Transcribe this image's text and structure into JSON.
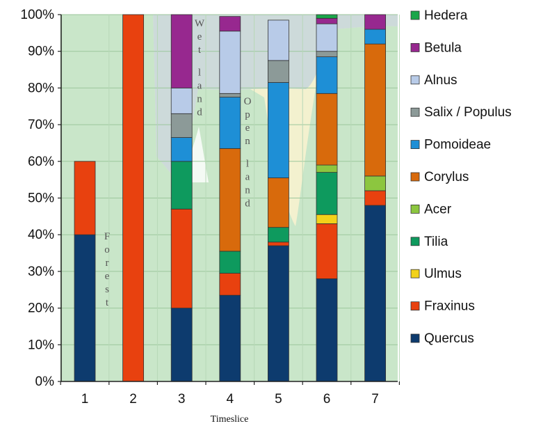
{
  "chart_data": {
    "type": "bar",
    "stacked": true,
    "percent": true,
    "title": "",
    "xlabel": "Timeslice",
    "ylabel": "",
    "ylim": [
      0,
      100
    ],
    "y_ticks": [
      "0%",
      "10%",
      "20%",
      "30%",
      "40%",
      "50%",
      "60%",
      "70%",
      "80%",
      "90%",
      "100%"
    ],
    "categories": [
      "1",
      "2",
      "3",
      "4",
      "5",
      "6",
      "7"
    ],
    "legend_position": "right",
    "series": [
      {
        "name": "Quercus",
        "color": "#0d3b6e",
        "values": [
          40,
          0,
          20,
          23.5,
          37,
          28,
          48
        ]
      },
      {
        "name": "Fraxinus",
        "color": "#e8410f",
        "values": [
          20,
          100,
          27,
          6,
          1,
          15,
          4
        ]
      },
      {
        "name": "Ulmus",
        "color": "#f2d21a",
        "values": [
          0,
          0,
          0,
          0,
          0,
          2.5,
          0
        ]
      },
      {
        "name": "Tilia",
        "color": "#0e9a5e",
        "values": [
          0,
          0,
          13,
          6,
          4,
          11.5,
          0
        ]
      },
      {
        "name": "Acer",
        "color": "#8cc63f",
        "values": [
          0,
          0,
          0,
          0,
          0,
          2,
          4
        ]
      },
      {
        "name": "Corylus",
        "color": "#d86a0c",
        "values": [
          0,
          0,
          0,
          28,
          13.5,
          19.5,
          36
        ]
      },
      {
        "name": "Pomoideae",
        "color": "#1e8fd6",
        "values": [
          0,
          0,
          6.5,
          14,
          26,
          10,
          4
        ]
      },
      {
        "name": "Salix / Populus",
        "color": "#8c9a98",
        "values": [
          0,
          0,
          6.5,
          1,
          6,
          1.5,
          0
        ]
      },
      {
        "name": "Alnus",
        "color": "#b8cbe8",
        "values": [
          0,
          0,
          7,
          17,
          11,
          7.5,
          0
        ]
      },
      {
        "name": "Betula",
        "color": "#97288f",
        "values": [
          0,
          0,
          20,
          4,
          0,
          1.5,
          4
        ]
      },
      {
        "name": "Hedera",
        "color": "#1aa64a",
        "values": [
          0,
          0,
          0,
          0,
          0,
          1,
          0
        ]
      }
    ],
    "bar_override_colors": {
      "0": {
        "Ulmus": "#d9c800"
      }
    },
    "annotations": [
      {
        "text": "Forest",
        "region": "forest"
      },
      {
        "text": "Wet land",
        "region": "wet-land"
      },
      {
        "text": "Open land",
        "region": "open-land"
      }
    ],
    "background_colors": {
      "forest": "#c9e6c9",
      "wet_land": "#c5d6dc",
      "open_land": "#f3f1cf"
    }
  }
}
